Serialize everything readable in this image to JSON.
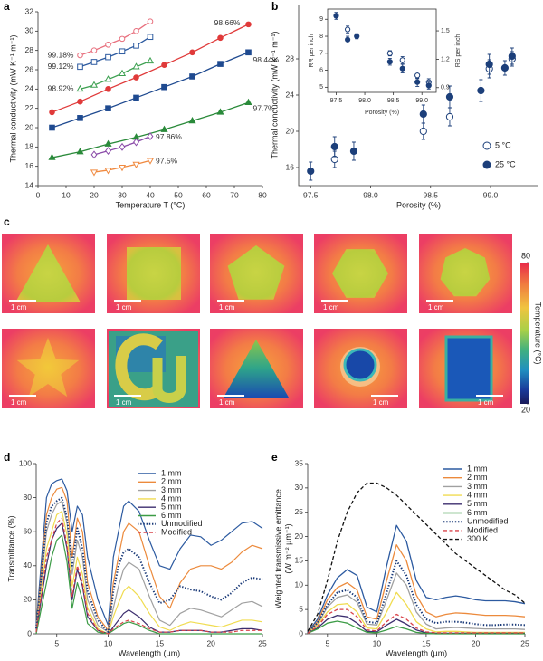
{
  "chart_data": [
    {
      "panel": "a",
      "type": "line",
      "xlabel": "Temperature T (°C)",
      "ylabel": "Thermal conductivity (mW K⁻¹ m⁻¹)",
      "xlim": [
        0,
        80
      ],
      "xticks": [
        0,
        10,
        20,
        30,
        40,
        50,
        60,
        70,
        80
      ],
      "ylim": [
        14,
        32
      ],
      "yticks": [
        14,
        16,
        18,
        20,
        22,
        24,
        26,
        28,
        30,
        32
      ],
      "series": [
        {
          "name": "99.18%",
          "color": "#e8707e",
          "marker": "circle",
          "filled": false,
          "x": [
            15,
            20,
            25,
            30,
            35,
            40
          ],
          "values": [
            27.5,
            28.0,
            28.6,
            29.2,
            30.0,
            31.0
          ]
        },
        {
          "name": "99.12%",
          "color": "#2c5aa0",
          "marker": "square",
          "filled": false,
          "x": [
            15,
            20,
            25,
            30,
            35,
            40
          ],
          "values": [
            26.3,
            26.8,
            27.3,
            27.9,
            28.5,
            29.4
          ]
        },
        {
          "name": "98.92%",
          "color": "#3ca050",
          "marker": "triangle",
          "filled": false,
          "x": [
            15,
            20,
            25,
            30,
            35,
            40
          ],
          "values": [
            24.0,
            24.4,
            25.0,
            25.6,
            26.3,
            26.9
          ]
        },
        {
          "name": "98.66%",
          "color": "#e03a3a",
          "marker": "circle",
          "filled": true,
          "x": [
            5,
            15,
            25,
            35,
            45,
            55,
            65,
            75
          ],
          "values": [
            21.6,
            22.7,
            24.0,
            25.2,
            26.5,
            27.8,
            29.3,
            30.7
          ]
        },
        {
          "name": "98.44%",
          "color": "#1f4a90",
          "marker": "square",
          "filled": true,
          "x": [
            5,
            15,
            25,
            35,
            45,
            55,
            65,
            75
          ],
          "values": [
            20.0,
            21.0,
            22.0,
            23.1,
            24.2,
            25.3,
            26.6,
            27.8
          ]
        },
        {
          "name": "97.7%",
          "color": "#2a8a3a",
          "marker": "triangle",
          "filled": true,
          "x": [
            5,
            15,
            25,
            35,
            45,
            55,
            65,
            75
          ],
          "values": [
            16.9,
            17.5,
            18.3,
            19.0,
            19.8,
            20.7,
            21.6,
            22.6
          ]
        },
        {
          "name": "97.86%",
          "color": "#8a4aa8",
          "marker": "diamond",
          "filled": false,
          "x": [
            20,
            25,
            30,
            35,
            40
          ],
          "values": [
            17.2,
            17.6,
            18.0,
            18.5,
            19.1
          ]
        },
        {
          "name": "97.5%",
          "color": "#f08a40",
          "marker": "triangle-down",
          "filled": false,
          "x": [
            20,
            25,
            30,
            35,
            40
          ],
          "values": [
            15.4,
            15.6,
            15.9,
            16.2,
            16.6
          ]
        }
      ]
    },
    {
      "panel": "b",
      "type": "errorbar",
      "xlabel": "Porosity (%)",
      "ylabel": "Thermal conductivity (mW K⁻¹ m⁻¹)",
      "xlim": [
        97.4,
        99.4
      ],
      "xticks": [
        97.5,
        {
          "value": 98,
          "label": "98.0"
        },
        98.5,
        {
          "value": 99,
          "label": "99.0"
        }
      ],
      "ylim": [
        14,
        34
      ],
      "yticks": [
        16,
        20,
        24,
        28
      ],
      "series": [
        {
          "name": "5 °C",
          "color": "#1c3f7a",
          "marker": "circle",
          "filled": false,
          "x": [
            97.7,
            98.44,
            98.66,
            98.99,
            99.18
          ],
          "values": [
            16.9,
            20.0,
            21.6,
            26.9,
            28.0
          ],
          "errors": [
            0.9,
            0.9,
            1.0,
            1.0,
            0.8
          ]
        },
        {
          "name": "25 °C",
          "color": "#1c3f7a",
          "marker": "circle",
          "filled": true,
          "x": [
            97.5,
            97.7,
            97.86,
            98.44,
            98.66,
            98.92,
            98.99,
            99.12,
            99.18
          ],
          "values": [
            15.6,
            18.3,
            17.8,
            21.9,
            23.8,
            24.5,
            27.4,
            27.0,
            28.3
          ],
          "errors": [
            1.0,
            1.1,
            1.0,
            1.0,
            1.2,
            1.2,
            1.1,
            0.8,
            0.9
          ]
        }
      ]
    },
    {
      "type": "errorbar",
      "xlabel": "Porosity (%)",
      "ylabel": "RR per inch",
      "y2label": "RS per inch",
      "xlim": [
        97.35,
        99.25
      ],
      "xticks": [
        97.5,
        {
          "value": 98,
          "label": "98.0"
        },
        98.5,
        {
          "value": 99,
          "label": "99.0"
        }
      ],
      "ylim": [
        4.7,
        9.6
      ],
      "yticks": [
        5,
        6,
        7,
        8,
        9
      ],
      "y2lim": [
        0.85,
        1.73
      ],
      "y2ticks": [
        0.9,
        1.2,
        1.5
      ],
      "series": [
        {
          "color": "#1c3f7a",
          "marker": "circle",
          "filled": false,
          "x": [
            97.7,
            98.44,
            98.66,
            98.92,
            99.12
          ],
          "values": [
            8.4,
            7.0,
            6.6,
            5.7,
            5.3
          ],
          "errors": [
            0.2,
            0.15,
            0.2,
            0.2,
            0.2
          ]
        },
        {
          "color": "#1c3f7a",
          "marker": "circle",
          "filled": true,
          "x": [
            97.5,
            97.7,
            97.86,
            98.44,
            98.66,
            98.92,
            99.12
          ],
          "values": [
            9.2,
            7.8,
            8.0,
            6.5,
            6.1,
            5.3,
            5.1
          ],
          "errors": [
            0.2,
            0.2,
            0.15,
            0.2,
            0.25,
            0.25,
            0.2
          ]
        }
      ]
    },
    {
      "panel": "c",
      "type": "thermal-images",
      "scale_bar": "1 cm",
      "colorbar": {
        "label": "Temperature (°C)",
        "lim": [
          20,
          80
        ],
        "ticks": [
          20,
          80
        ]
      }
    },
    {
      "panel": "d",
      "type": "line",
      "xlabel": "Wavelength (µm)",
      "ylabel": "Transmittance (%)",
      "xlim": [
        3,
        25
      ],
      "xticks": [
        5,
        10,
        15,
        20,
        25
      ],
      "ylim": [
        0,
        100
      ],
      "yticks": [
        0,
        20,
        40,
        60,
        80,
        100
      ],
      "x": [
        3,
        4,
        4.5,
        5,
        5.5,
        6,
        6.5,
        7,
        7.5,
        8,
        9,
        10,
        10.5,
        11,
        11.5,
        12,
        13,
        14,
        15,
        16,
        17,
        18,
        19,
        20,
        21,
        22,
        23,
        24,
        25
      ],
      "series": [
        {
          "name": "1 mm",
          "color": "#2c5aa0",
          "values": [
            5,
            80,
            88,
            90,
            91,
            84,
            60,
            75,
            70,
            45,
            20,
            5,
            45,
            60,
            75,
            78,
            72,
            55,
            40,
            38,
            50,
            58,
            57,
            52,
            55,
            60,
            65,
            66,
            62
          ]
        },
        {
          "name": "2 mm",
          "color": "#ec8a3c",
          "values": [
            3,
            70,
            80,
            85,
            86,
            78,
            45,
            68,
            60,
            30,
            10,
            2,
            30,
            45,
            60,
            65,
            60,
            40,
            22,
            15,
            30,
            38,
            40,
            40,
            38,
            42,
            48,
            52,
            50
          ]
        },
        {
          "name": "3 mm",
          "color": "#a0a0a0",
          "values": [
            2,
            60,
            70,
            76,
            78,
            65,
            35,
            55,
            45,
            20,
            5,
            1,
            15,
            28,
            38,
            42,
            38,
            22,
            8,
            5,
            12,
            15,
            14,
            12,
            10,
            14,
            18,
            19,
            16
          ]
        },
        {
          "name": "4 mm",
          "color": "#f0dc50",
          "values": [
            1,
            50,
            60,
            70,
            72,
            58,
            28,
            45,
            35,
            15,
            3,
            0,
            10,
            18,
            25,
            28,
            22,
            12,
            4,
            2,
            5,
            7,
            6,
            5,
            4,
            6,
            8,
            8,
            7
          ]
        },
        {
          "name": "5 mm",
          "color": "#3b2d6e",
          "values": [
            1,
            40,
            55,
            62,
            65,
            50,
            20,
            38,
            28,
            10,
            2,
            0,
            4,
            8,
            12,
            14,
            10,
            4,
            1,
            1,
            2,
            2,
            2,
            1,
            1,
            2,
            3,
            3,
            2
          ]
        },
        {
          "name": "6 mm",
          "color": "#3c9c46",
          "values": [
            0,
            30,
            45,
            55,
            58,
            42,
            15,
            30,
            20,
            6,
            1,
            0,
            2,
            4,
            6,
            7,
            5,
            2,
            0,
            0,
            0,
            0,
            0,
            0,
            0,
            0,
            0,
            0,
            0
          ]
        },
        {
          "name": "Unmodified",
          "color": "#1a3a78",
          "style": "dotted",
          "values": [
            3,
            65,
            75,
            78,
            80,
            68,
            40,
            62,
            50,
            25,
            8,
            1,
            25,
            40,
            48,
            50,
            45,
            30,
            18,
            20,
            28,
            26,
            25,
            22,
            20,
            24,
            30,
            33,
            32
          ]
        },
        {
          "name": "Modified",
          "color": "#d9434a",
          "style": "dashed",
          "values": [
            1,
            45,
            55,
            65,
            68,
            52,
            22,
            40,
            30,
            12,
            2,
            0,
            3,
            5,
            7,
            8,
            6,
            3,
            1,
            1,
            2,
            2,
            2,
            1,
            1,
            1,
            2,
            2,
            2
          ]
        }
      ]
    },
    {
      "panel": "e",
      "type": "line",
      "xlabel": "Wavelength (µm)",
      "ylabel": [
        "Weighted transmissive emittance",
        "(W m⁻² µm⁻¹)"
      ],
      "xlim": [
        3,
        25
      ],
      "xticks": [
        5,
        10,
        15,
        20,
        25
      ],
      "ylim": [
        0,
        35
      ],
      "yticks": [
        0,
        5,
        10,
        15,
        20,
        25,
        30,
        35
      ],
      "x": [
        3,
        4,
        5,
        6,
        7,
        8,
        9,
        10,
        11,
        12,
        13,
        14,
        15,
        16,
        17,
        18,
        19,
        20,
        21,
        22,
        23,
        24,
        25
      ],
      "series": [
        {
          "name": "1 mm",
          "color": "#2c5aa0",
          "values": [
            0.3,
            3,
            8,
            11.5,
            13.2,
            12,
            5.5,
            4.5,
            14,
            22.3,
            19,
            11,
            7.5,
            7,
            7.5,
            7.8,
            7.5,
            7,
            6.8,
            6.8,
            6.8,
            6.6,
            6.2
          ]
        },
        {
          "name": "2 mm",
          "color": "#ec8a3c",
          "values": [
            0.2,
            2.5,
            7,
            9.5,
            10.5,
            9,
            3.5,
            3,
            11,
            18.3,
            15,
            8,
            4.5,
            3.5,
            4,
            4.3,
            4.2,
            4,
            3.8,
            3.8,
            3.8,
            3.7,
            3.5
          ]
        },
        {
          "name": "3 mm",
          "color": "#a0a0a0",
          "values": [
            0.2,
            2,
            5.5,
            7.5,
            8,
            6.5,
            2,
            1.8,
            7,
            12.5,
            10,
            4.5,
            2,
            1,
            1.2,
            1.3,
            1.2,
            1.1,
            1,
            1,
            1,
            1,
            0.9
          ]
        },
        {
          "name": "4 mm",
          "color": "#f0dc50",
          "values": [
            0.1,
            1.8,
            4.5,
            6,
            6.2,
            4.5,
            1.2,
            1,
            4.5,
            8.5,
            6,
            2.5,
            1,
            0.4,
            0.5,
            0.5,
            0.4,
            0.3,
            0.3,
            0.3,
            0.3,
            0.3,
            0.3
          ]
        },
        {
          "name": "5 mm",
          "color": "#3b2d6e",
          "values": [
            0.1,
            1.2,
            3,
            3.8,
            3.5,
            2.2,
            0.5,
            0.4,
            1.8,
            3,
            2,
            0.8,
            0.2,
            0.1,
            0.1,
            0.1,
            0.1,
            0.1,
            0.1,
            0.1,
            0.1,
            0.1,
            0.1
          ]
        },
        {
          "name": "6 mm",
          "color": "#3c9c46",
          "values": [
            0.1,
            1,
            2.2,
            2.6,
            2.2,
            1.2,
            0.3,
            0.2,
            0.8,
            1.5,
            1,
            0.3,
            0.1,
            0,
            0,
            0,
            0,
            0,
            0,
            0,
            0,
            0,
            0
          ]
        },
        {
          "name": "Unmodified",
          "color": "#1a3a78",
          "style": "dotted",
          "values": [
            0.2,
            2.3,
            6,
            8.5,
            9,
            7.5,
            2.5,
            2.2,
            8.5,
            15,
            12,
            6,
            3,
            2.2,
            2.5,
            2.5,
            2.3,
            2,
            1.8,
            1.8,
            1.9,
            1.9,
            1.8
          ]
        },
        {
          "name": "Modified",
          "color": "#d9434a",
          "style": "dashed",
          "values": [
            0.1,
            1.5,
            4,
            5,
            5,
            3.5,
            0.8,
            0.6,
            2.5,
            4,
            3,
            1.2,
            0.4,
            0.2,
            0.2,
            0.2,
            0.2,
            0.2,
            0.2,
            0.2,
            0.2,
            0.2,
            0.2
          ]
        },
        {
          "name": "300 K",
          "color": "#111111",
          "style": "dashed",
          "values": [
            0.5,
            4,
            11,
            19,
            25,
            29,
            31,
            31,
            30,
            28.5,
            26.5,
            24.5,
            22.5,
            20.5,
            18.5,
            16.5,
            15,
            13.5,
            12,
            10.5,
            9,
            8,
            6.3
          ]
        }
      ]
    }
  ]
}
